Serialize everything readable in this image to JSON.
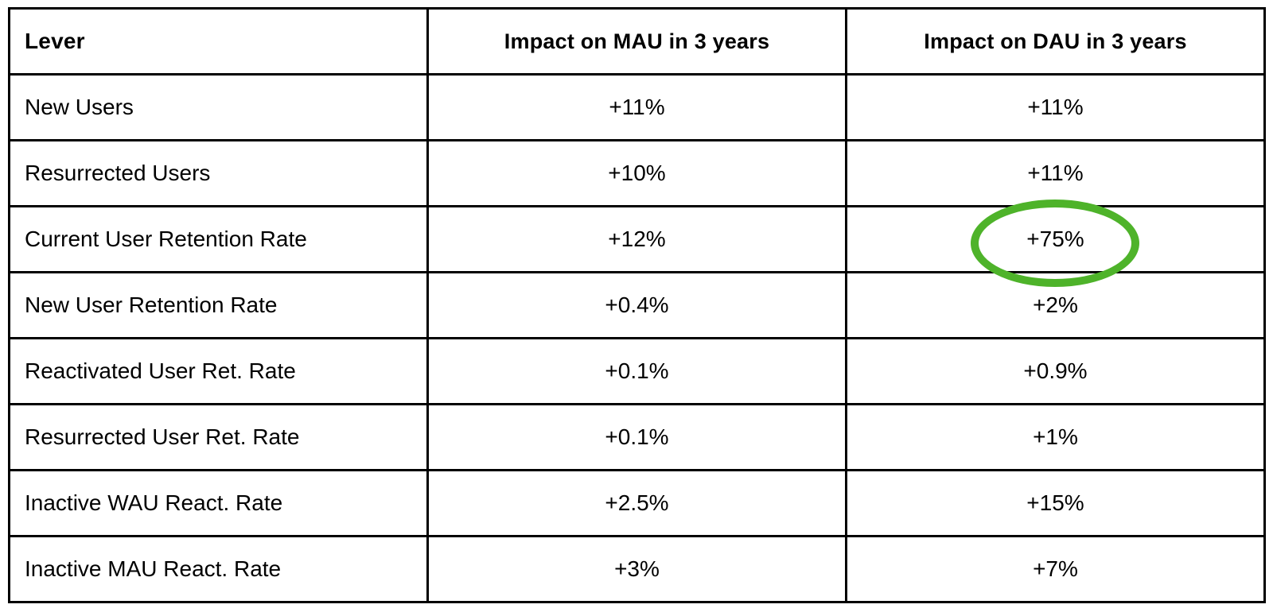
{
  "chart_data": {
    "type": "table",
    "columns": [
      "Lever",
      "Impact on MAU in 3 years",
      "Impact on DAU in 3 years"
    ],
    "rows": [
      [
        "New Users",
        "+11%",
        "+11%"
      ],
      [
        "Resurrected Users",
        "+10%",
        "+11%"
      ],
      [
        "Current User Retention Rate",
        "+12%",
        "+75%"
      ],
      [
        "New User Retention Rate",
        "+0.4%",
        "+2%"
      ],
      [
        "Reactivated User Ret. Rate",
        "+0.1%",
        "+0.9%"
      ],
      [
        "Resurrected User Ret. Rate",
        "+0.1%",
        "+1%"
      ],
      [
        "Inactive WAU React. Rate",
        "+2.5%",
        "+15%"
      ],
      [
        "Inactive MAU React. Rate",
        "+3%",
        "+7%"
      ]
    ],
    "layout": {
      "grid": "on",
      "border_color": "#000000",
      "background": "#ffffff"
    },
    "annotation": {
      "type": "ellipse-highlight",
      "row_label": "Current User Retention Rate",
      "column_label": "Impact on DAU in 3 years",
      "value": "+75%",
      "color": "#4eb32a"
    }
  }
}
